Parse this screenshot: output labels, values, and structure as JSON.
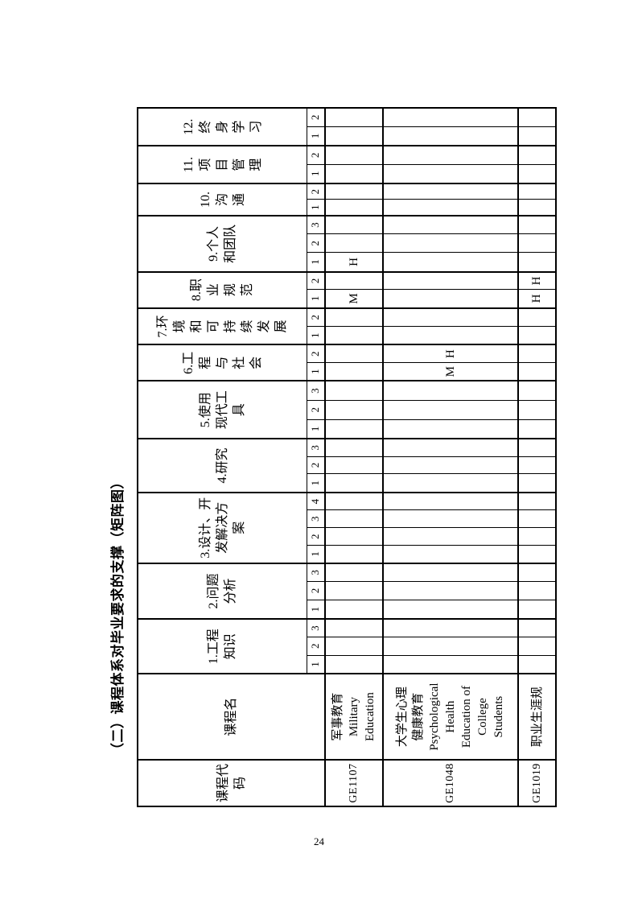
{
  "title": "（二）课程体系对毕业要求的支撑（矩阵图）",
  "page": {
    "number": "24"
  },
  "table": {
    "corner_headers": {
      "course_code": "课程代\n码",
      "course_name": "课程名"
    },
    "requirements": [
      {
        "label": "1.工程\n知识",
        "subs": [
          "1",
          "2",
          "3"
        ]
      },
      {
        "label": "2.问题\n分析",
        "subs": [
          "1",
          "2",
          "3"
        ]
      },
      {
        "label": "3.设计、开\n发解决方\n案",
        "subs": [
          "1",
          "2",
          "3",
          "4"
        ]
      },
      {
        "label": "4.研究",
        "subs": [
          "1",
          "2",
          "3"
        ]
      },
      {
        "label": "5.使用\n现代工\n具",
        "subs": [
          "1",
          "2",
          "3"
        ]
      },
      {
        "label": "6.工\n程\n与\n社\n会",
        "subs": [
          "1",
          "2"
        ]
      },
      {
        "label": "7.环\n境\n和\n可\n持\n续\n发\n展",
        "subs": [
          "1",
          "2"
        ]
      },
      {
        "label": "8.职\n业\n规\n范",
        "subs": [
          "1",
          "2"
        ]
      },
      {
        "label": "9.个人\n和团队",
        "subs": [
          "1",
          "2",
          "3"
        ]
      },
      {
        "label": "10.\n沟\n通",
        "subs": [
          "1",
          "2"
        ]
      },
      {
        "label": "11.\n项\n目\n管\n理",
        "subs": [
          "1",
          "2"
        ]
      },
      {
        "label": "12.\n终\n身\n学\n习",
        "subs": [
          "1",
          "2"
        ]
      }
    ],
    "courses": [
      {
        "code": "GE1107",
        "name": "军事教育\nMilitary\nEducation",
        "marks": {
          "9.1": "H",
          "8.1": "M"
        }
      },
      {
        "code": "GE1048",
        "name": "大学生心理\n健康教育\nPsychological\nHealth\nEducation of\nCollege\nStudents",
        "marks": {
          "6.2": "H",
          "6.1": "M"
        }
      },
      {
        "code": "GE1019",
        "name": "职业生涯规",
        "marks": {
          "8.2": "H",
          "8.1": "H"
        }
      }
    ]
  }
}
